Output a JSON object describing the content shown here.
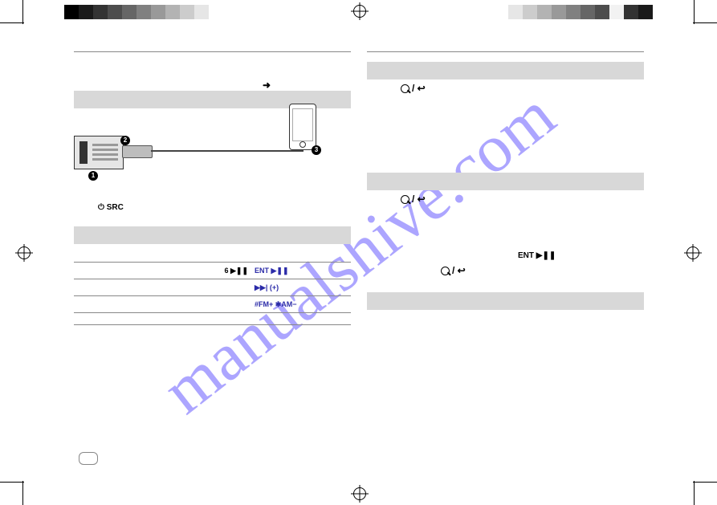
{
  "watermark": "manualshive.com",
  "colorbar_left": [
    "#000000",
    "#1a1a1a",
    "#333333",
    "#4d4d4d",
    "#666666",
    "#808080",
    "#999999",
    "#b3b3b3",
    "#cccccc",
    "#e6e6e6"
  ],
  "colorbar_right": [
    "#e6e6e6",
    "#cccccc",
    "#b3b3b3",
    "#999999",
    "#808080",
    "#666666",
    "#4d4d4d",
    "#f2f2f2",
    "#333333",
    "#1a1a1a"
  ],
  "power_src_label": "SRC",
  "diagram_callouts": {
    "one": "1",
    "two": "2",
    "three": "3"
  },
  "table": {
    "row1_left": "6 ▶❚❚",
    "row1_right": "ENT ▶❚❚",
    "row2_right": "▶▶| (+)",
    "row3_right": "#FM+  ✱AM−"
  },
  "right": {
    "search_glyph": "⌕ / ↩",
    "ent_label": "ENT ▶❚❚"
  },
  "section_bg": "#d8d8d8",
  "rule_color": "#888888",
  "link_color": "#2b2ba8"
}
